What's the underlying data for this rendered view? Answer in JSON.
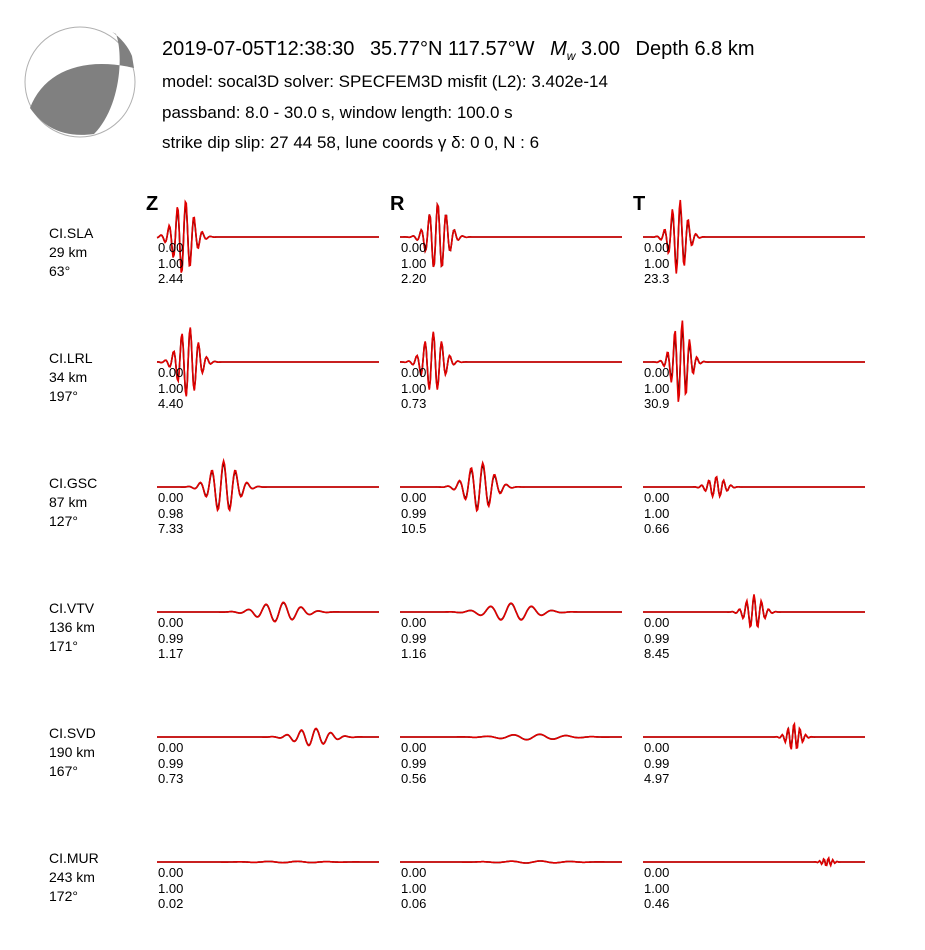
{
  "header": {
    "origin_time": "2019-07-05T12:38:30",
    "latitude": "35.77°N",
    "longitude": "117.57°W",
    "magnitude_symbol": "M",
    "magnitude_subscript": "w",
    "magnitude_value": "3.00",
    "depth": "Depth 6.8 km",
    "line2": "model: socal3D   solver: SPECFEM3D   misfit (L2): 3.402e-14",
    "line3": "passband: 8.0 - 30.0 s,  window length: 100.0 s",
    "line4": "strike  dip  slip:  27  44  58,   lune coords γ  δ:  0  0,    N : 6"
  },
  "beachball": {
    "fill": "#808080",
    "outline": "#b0b0b0"
  },
  "colors": {
    "data_trace": "#000000",
    "synthetic_trace": "#e00000"
  },
  "chart_data": {
    "type": "line",
    "components": [
      "Z",
      "R",
      "T"
    ],
    "stations": [
      {
        "name": "CI.SLA",
        "distance": "29 km",
        "azimuth": "63°",
        "vals": [
          [
            "0.00",
            "1.00",
            "2.44"
          ],
          [
            "0.00",
            "1.00",
            "2.20"
          ],
          [
            "0.00",
            "1.00",
            "23.3"
          ]
        ]
      },
      {
        "name": "CI.LRL",
        "distance": "34 km",
        "azimuth": "197°",
        "vals": [
          [
            "0.00",
            "1.00",
            "4.40"
          ],
          [
            "0.00",
            "1.00",
            "0.73"
          ],
          [
            "0.00",
            "1.00",
            "30.9"
          ]
        ]
      },
      {
        "name": "CI.GSC",
        "distance": "87 km",
        "azimuth": "127°",
        "vals": [
          [
            "0.00",
            "0.98",
            "7.33"
          ],
          [
            "0.00",
            "0.99",
            "10.5"
          ],
          [
            "0.00",
            "1.00",
            "0.66"
          ]
        ]
      },
      {
        "name": "CI.VTV",
        "distance": "136 km",
        "azimuth": "171°",
        "vals": [
          [
            "0.00",
            "0.99",
            "1.17"
          ],
          [
            "0.00",
            "0.99",
            "1.16"
          ],
          [
            "0.00",
            "0.99",
            "8.45"
          ]
        ]
      },
      {
        "name": "CI.SVD",
        "distance": "190 km",
        "azimuth": "167°",
        "vals": [
          [
            "0.00",
            "0.99",
            "0.73"
          ],
          [
            "0.00",
            "0.99",
            "0.56"
          ],
          [
            "0.00",
            "0.99",
            "4.97"
          ]
        ]
      },
      {
        "name": "CI.MUR",
        "distance": "243 km",
        "azimuth": "172°",
        "vals": [
          [
            "0.00",
            "1.00",
            "0.02"
          ],
          [
            "0.00",
            "1.00",
            "0.06"
          ],
          [
            "0.00",
            "1.00",
            "0.46"
          ]
        ]
      }
    ],
    "waveforms": [
      [
        {
          "t0": 0.12,
          "amp": 1.0,
          "f": 1.6,
          "w": 0.06,
          "ph": 0.0,
          "sa": 1.12
        },
        {
          "t0": 0.17,
          "amp": 1.0,
          "f": 1.6,
          "w": 0.06,
          "ph": 1.57,
          "sa": 1.0
        },
        {
          "t0": 0.16,
          "amp": 0.95,
          "f": 1.4,
          "w": 0.05,
          "ph": 0.2,
          "sa": 1.18
        }
      ],
      [
        {
          "t0": 0.14,
          "amp": 1.0,
          "f": 1.6,
          "w": 0.06,
          "ph": 0.0,
          "sa": 1.05
        },
        {
          "t0": 0.15,
          "amp": 0.85,
          "f": 1.6,
          "w": 0.06,
          "ph": 1.57,
          "sa": 1.05
        },
        {
          "t0": 0.17,
          "amp": 1.0,
          "f": 1.5,
          "w": 0.05,
          "ph": 0.3,
          "sa": 1.25
        }
      ],
      [
        {
          "t0": 0.3,
          "amp": 0.7,
          "f": 1.5,
          "w": 0.08,
          "ph": 1.57,
          "sa": 1.1
        },
        {
          "t0": 0.36,
          "amp": 0.65,
          "f": 1.5,
          "w": 0.08,
          "ph": 0.0,
          "sa": 1.12
        },
        {
          "t0": 0.33,
          "amp": 0.3,
          "f": 1.5,
          "w": 0.05,
          "ph": 1.57,
          "sa": 1.05
        }
      ],
      [
        {
          "t0": 0.55,
          "amp": 0.28,
          "f": 1.5,
          "w": 0.12,
          "ph": 0.0,
          "sa": 1.05
        },
        {
          "t0": 0.5,
          "amp": 0.25,
          "f": 1.5,
          "w": 0.14,
          "ph": 1.57,
          "sa": 1.05
        },
        {
          "t0": 0.5,
          "amp": 0.45,
          "f": 1.5,
          "w": 0.05,
          "ph": 1.57,
          "sa": 1.15
        }
      ],
      [
        {
          "t0": 0.7,
          "amp": 0.25,
          "f": 1.5,
          "w": 0.1,
          "ph": 0.0,
          "sa": 1.05
        },
        {
          "t0": 0.6,
          "amp": 0.08,
          "f": 1.5,
          "w": 0.18,
          "ph": 0.0,
          "sa": 1.05
        },
        {
          "t0": 0.68,
          "amp": 0.35,
          "f": 1.5,
          "w": 0.04,
          "ph": 1.57,
          "sa": 1.2
        }
      ],
      [
        {
          "t0": 0.6,
          "amp": 0.02,
          "f": 1.5,
          "w": 0.2,
          "ph": 0.0,
          "sa": 1.0
        },
        {
          "t0": 0.6,
          "amp": 0.03,
          "f": 1.5,
          "w": 0.2,
          "ph": 0.0,
          "sa": 1.0
        },
        {
          "t0": 0.83,
          "amp": 0.12,
          "f": 1.5,
          "w": 0.03,
          "ph": 0.0,
          "sa": 1.1
        }
      ]
    ]
  }
}
